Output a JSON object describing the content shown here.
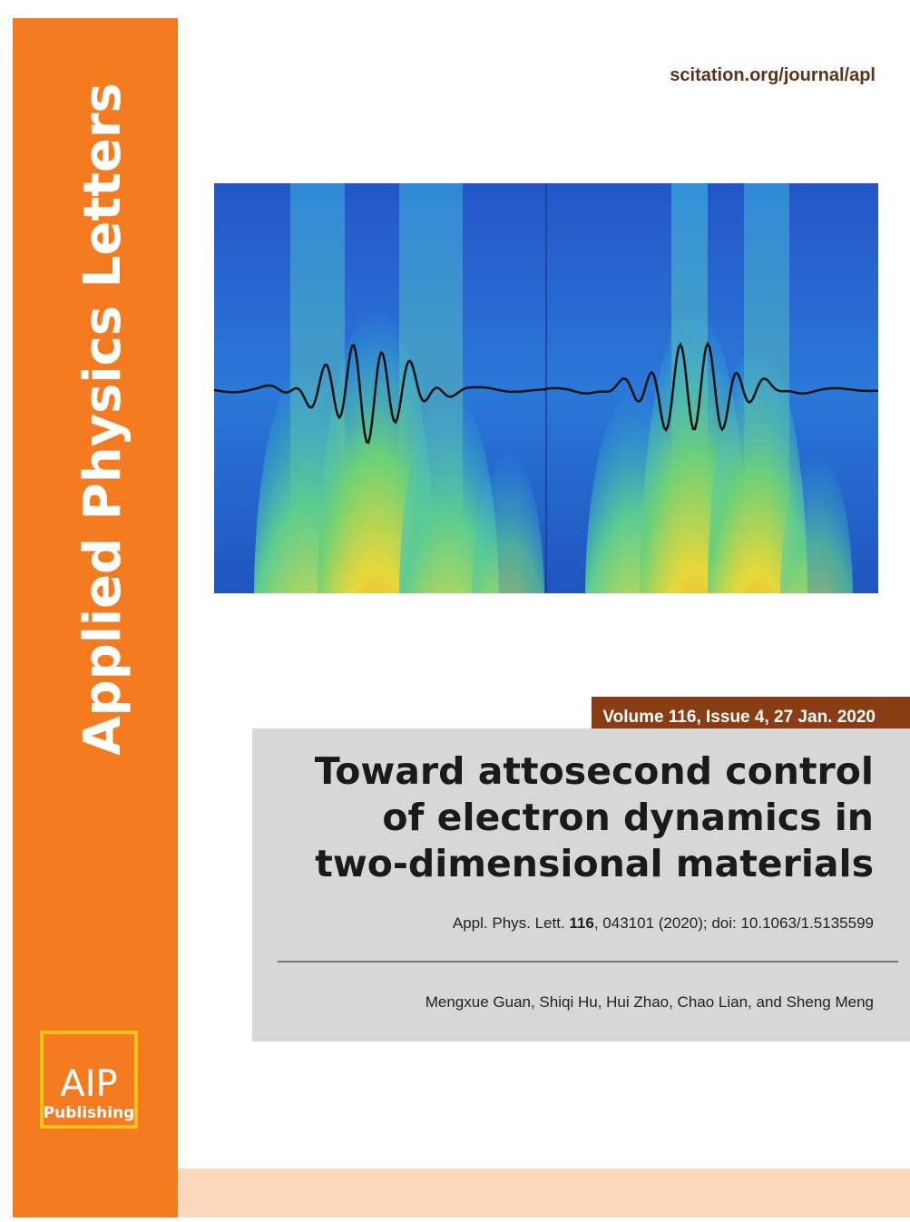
{
  "journal": "Applied Physics Letters",
  "url": "scitation.org/journal/apl",
  "issue": "Volume 116, Issue 4, 27 Jan. 2020",
  "title_lines": [
    "Toward attosecond control",
    "of electron dynamics in",
    "two-dimensional materials"
  ],
  "citation": {
    "prefix": "Appl. Phys. Lett. ",
    "volume": "116",
    "suffix": ", 043101 (2020); doi: 10.1063/1.5135599"
  },
  "authors": "Mengxue Guan, Shiqi Hu, Hui Zhao, Chao Lian, and Sheng Meng",
  "logo": {
    "top": "AIP",
    "bottom": "Publishing"
  }
}
